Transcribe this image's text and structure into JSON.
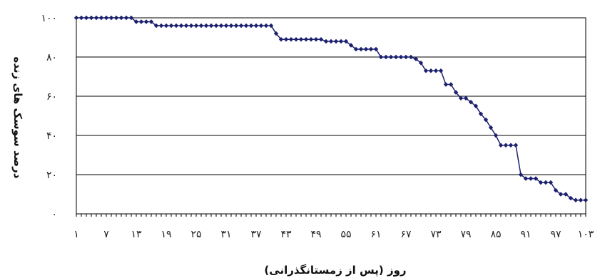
{
  "chart_data": {
    "type": "line",
    "title": "",
    "xlabel": "روز (پس از زمستانگذرانی)",
    "ylabel": "درصد سوسک های زنده",
    "ylim": [
      0,
      100
    ],
    "xlim": [
      1,
      103
    ],
    "grid": "horizontal",
    "legend": "none",
    "x_ticks": [
      1,
      7,
      13,
      19,
      25,
      31,
      37,
      43,
      49,
      55,
      61,
      67,
      73,
      79,
      85,
      91,
      97,
      103
    ],
    "x_tick_labels": [
      "۱",
      "۷",
      "۱۳",
      "۱۹",
      "۲۵",
      "۳۱",
      "۳۷",
      "۴۳",
      "۴۹",
      "۵۵",
      "۶۱",
      "۶۷",
      "۷۳",
      "۷۹",
      "۸۵",
      "۹۱",
      "۹۷",
      "۱۰۳"
    ],
    "y_ticks": [
      0,
      20,
      40,
      60,
      80,
      100
    ],
    "y_tick_labels": [
      "۰",
      "۲۰",
      "۴۰",
      "۶۰",
      "۸۰",
      "۱۰۰"
    ],
    "colors": {
      "series": "#1a1f6e",
      "grid": "#000000"
    },
    "series": [
      {
        "name": "",
        "x": [
          1,
          2,
          3,
          4,
          5,
          6,
          7,
          8,
          9,
          10,
          11,
          12,
          13,
          14,
          15,
          16,
          17,
          18,
          19,
          20,
          21,
          22,
          23,
          24,
          25,
          26,
          27,
          28,
          29,
          30,
          31,
          32,
          33,
          34,
          35,
          36,
          37,
          38,
          39,
          40,
          41,
          42,
          43,
          44,
          45,
          46,
          47,
          48,
          49,
          50,
          51,
          52,
          53,
          54,
          55,
          56,
          57,
          58,
          59,
          60,
          61,
          62,
          63,
          64,
          65,
          66,
          67,
          68,
          69,
          70,
          71,
          72,
          73,
          74,
          75,
          76,
          77,
          78,
          79,
          80,
          81,
          82,
          83,
          84,
          85,
          86,
          87,
          88,
          89,
          90,
          91,
          92,
          93,
          94,
          95,
          96,
          97,
          98,
          99,
          100,
          101,
          102,
          103
        ],
        "values": [
          100,
          100,
          100,
          100,
          100,
          100,
          100,
          100,
          100,
          100,
          100,
          100,
          98,
          98,
          98,
          98,
          96,
          96,
          96,
          96,
          96,
          96,
          96,
          96,
          96,
          96,
          96,
          96,
          96,
          96,
          96,
          96,
          96,
          96,
          96,
          96,
          96,
          96,
          96,
          96,
          92,
          89,
          89,
          89,
          89,
          89,
          89,
          89,
          89,
          89,
          88,
          88,
          88,
          88,
          88,
          86,
          84,
          84,
          84,
          84,
          84,
          80,
          80,
          80,
          80,
          80,
          80,
          80,
          79,
          77,
          73,
          73,
          73,
          73,
          66,
          66,
          62,
          59,
          59,
          57,
          55,
          51,
          48,
          44,
          40,
          35,
          35,
          35,
          35,
          20,
          18,
          18,
          18,
          16,
          16,
          16,
          12,
          10,
          10,
          8,
          7,
          7,
          7
        ]
      }
    ]
  }
}
